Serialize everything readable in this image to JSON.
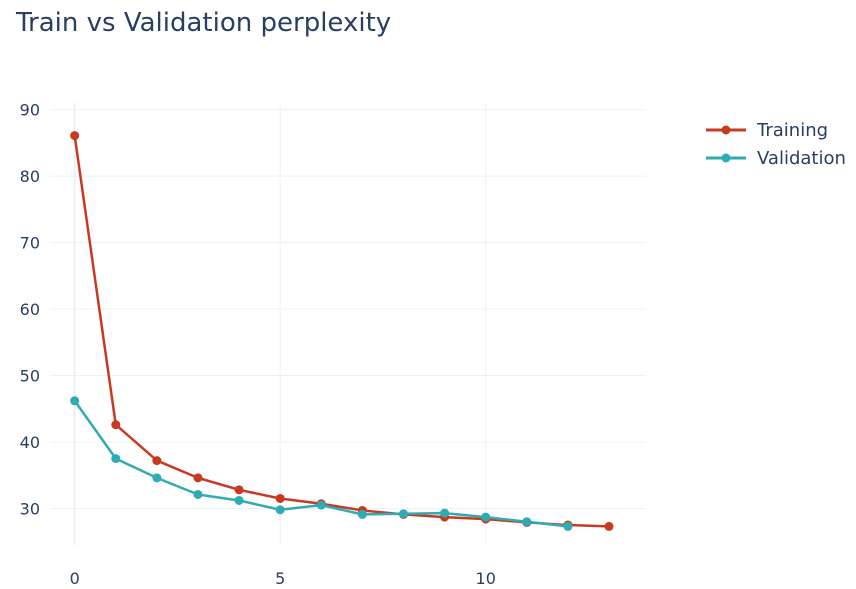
{
  "chart_data": {
    "type": "line",
    "title": "Train vs Validation perplexity",
    "xlabel": "",
    "ylabel": "",
    "xlim": [
      -0.6,
      13.9
    ],
    "ylim": [
      24.5,
      91
    ],
    "x_ticks": [
      "0",
      "5",
      "10"
    ],
    "y_ticks": [
      "30",
      "40",
      "50",
      "60",
      "70",
      "80",
      "90"
    ],
    "grid": true,
    "legend_position": "top-right",
    "series": [
      {
        "name": "Training",
        "color": "#C73A22",
        "x": [
          0,
          1,
          2,
          3,
          4,
          5,
          6,
          7,
          8,
          9,
          10,
          11,
          12,
          13
        ],
        "values": [
          86.1,
          42.6,
          37.2,
          34.6,
          32.8,
          31.5,
          30.7,
          29.7,
          29.1,
          28.7,
          28.4,
          27.9,
          27.5,
          27.3
        ]
      },
      {
        "name": "Validation",
        "color": "#2FABB3",
        "x": [
          0,
          1,
          2,
          3,
          4,
          5,
          6,
          7,
          8,
          9,
          10,
          11,
          12
        ],
        "values": [
          46.2,
          37.5,
          34.6,
          32.1,
          31.2,
          29.8,
          30.5,
          29.1,
          29.2,
          29.3,
          28.7,
          28.0,
          27.3
        ]
      }
    ]
  }
}
